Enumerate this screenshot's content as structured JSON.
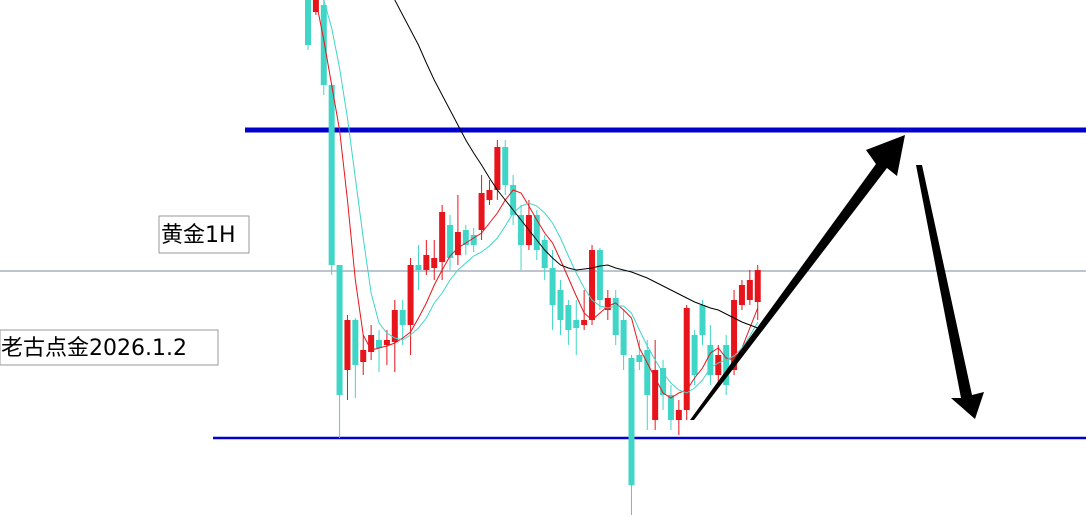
{
  "chart_data": {
    "type": "candlestick",
    "labels": [
      "黄金1H",
      "老古点金2026.1.2"
    ],
    "ylim": [
      0,
      518
    ],
    "up_color": "#e8141b",
    "down_color": "#3fd6c8",
    "open": [
      518,
      506,
      513,
      433,
      253,
      148,
      198,
      156,
      166,
      178,
      173,
      176,
      208,
      193,
      253,
      248,
      250,
      256,
      293,
      263,
      288,
      283,
      288,
      318,
      328,
      371,
      333,
      303,
      273,
      303,
      278,
      250,
      228,
      213,
      198,
      193,
      198,
      268,
      208,
      220,
      198,
      160,
      163,
      168,
      98,
      150,
      123,
      98,
      108,
      183,
      213,
      173,
      143,
      173,
      148,
      213,
      218,
      216
    ],
    "high": [
      518,
      518,
      518,
      433,
      253,
      203,
      200,
      183,
      193,
      188,
      188,
      218,
      218,
      260,
      273,
      278,
      278,
      313,
      303,
      323,
      293,
      290,
      343,
      338,
      378,
      378,
      343,
      313,
      318,
      308,
      283,
      268,
      238,
      218,
      218,
      228,
      273,
      270,
      228,
      228,
      208,
      163,
      178,
      178,
      178,
      158,
      133,
      118,
      213,
      188,
      218,
      193,
      173,
      183,
      228,
      238,
      248,
      253
    ],
    "low": [
      468,
      503,
      423,
      243,
      80,
      118,
      120,
      143,
      158,
      146,
      153,
      146,
      173,
      163,
      228,
      243,
      238,
      238,
      248,
      253,
      263,
      266,
      278,
      313,
      318,
      323,
      293,
      248,
      268,
      258,
      238,
      188,
      183,
      173,
      163,
      188,
      193,
      208,
      198,
      173,
      148,
      3,
      148,
      88,
      88,
      108,
      88,
      83,
      98,
      133,
      173,
      133,
      133,
      123,
      143,
      208,
      213,
      198
    ],
    "close": [
      473,
      518,
      433,
      253,
      123,
      198,
      153,
      168,
      183,
      170,
      178,
      208,
      193,
      253,
      248,
      263,
      260,
      306,
      260,
      286,
      273,
      273,
      325,
      328,
      371,
      333,
      303,
      273,
      303,
      268,
      250,
      213,
      198,
      188,
      190,
      198,
      268,
      218,
      220,
      183,
      163,
      33,
      156,
      123,
      148,
      123,
      98,
      108,
      210,
      143,
      183,
      143,
      163,
      133,
      218,
      233,
      238,
      248
    ],
    "lines": [
      {
        "color": "#e8141b",
        "values": [
          null,
          518,
          478,
          433,
          388,
          318,
          238,
          183,
          168,
          170,
          172,
          175,
          180,
          186,
          200,
          215,
          233,
          248,
          262,
          270,
          275,
          280,
          285,
          295,
          305,
          318,
          328,
          325,
          312,
          298,
          285,
          275,
          258,
          240,
          222,
          205,
          198,
          205,
          212,
          215,
          208,
          200,
          170,
          155,
          140,
          125,
          120,
          125,
          128,
          140,
          150,
          165,
          170,
          160,
          158,
          170,
          190,
          210
        ]
      },
      {
        "color": "#3fd6c8",
        "values": [
          null,
          null,
          518,
          490,
          450,
          400,
          340,
          280,
          225,
          195,
          185,
          180,
          178,
          183,
          190,
          200,
          215,
          225,
          238,
          248,
          255,
          262,
          266,
          272,
          280,
          292,
          305,
          312,
          315,
          312,
          305,
          295,
          280,
          262,
          245,
          230,
          218,
          212,
          210,
          212,
          212,
          205,
          188,
          172,
          158,
          145,
          135,
          128,
          125,
          130,
          138,
          150,
          155,
          158,
          162,
          170,
          182,
          196
        ]
      },
      {
        "color": "#000000",
        "values": [
          null,
          null,
          null,
          null,
          null,
          null,
          null,
          null,
          null,
          null,
          null,
          518,
          503,
          488,
          473,
          455,
          438,
          423,
          408,
          393,
          378,
          365,
          353,
          340,
          328,
          318,
          308,
          298,
          288,
          278,
          268,
          260,
          253,
          250,
          248,
          249,
          250,
          252,
          253,
          250,
          248,
          246,
          243,
          240,
          236,
          232,
          228,
          224,
          220,
          216,
          213,
          210,
          208,
          204,
          200,
          196,
          193,
          190
        ]
      }
    ],
    "levels": [
      {
        "value": 388,
        "color": "#0000cc",
        "style": "thick"
      },
      {
        "value": 247,
        "color": "#7a8aa0",
        "style": "hair"
      },
      {
        "value": 80,
        "color": "#0000cc",
        "style": "thin"
      }
    ]
  }
}
